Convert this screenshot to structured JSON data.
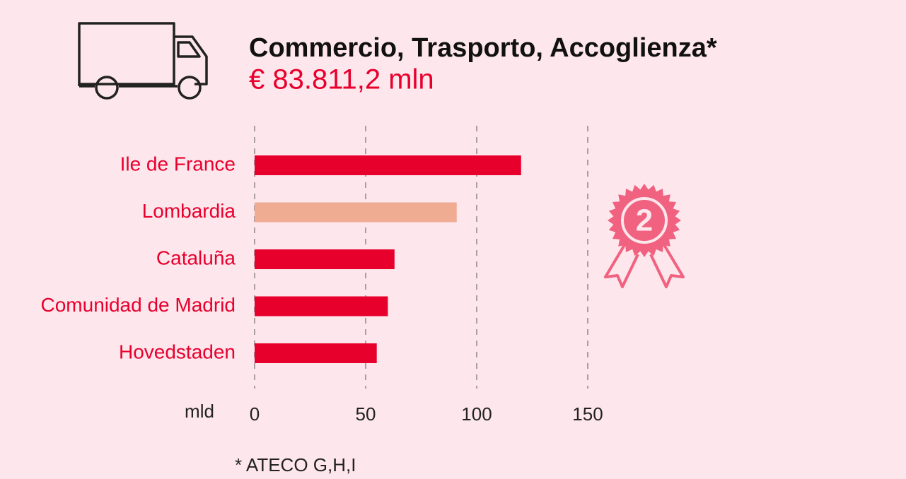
{
  "chart_data": {
    "type": "barh",
    "title": "Commercio, Trasporto, Accoglienza*",
    "subtitle": "€ 83.811,2 mln",
    "categories": [
      "Ile de France",
      "Lombardia",
      "Cataluña",
      "Comunidad de Madrid",
      "Hovedstaden"
    ],
    "values": [
      120,
      91,
      63,
      60,
      55
    ],
    "colors": [
      "#e8002d",
      "#f0ab93",
      "#e8002d",
      "#e8002d",
      "#e8002d"
    ],
    "xlim": [
      0,
      150
    ],
    "xticks": [
      0,
      50,
      100,
      150
    ],
    "x_unit": "mld",
    "grid": true,
    "badge": "2",
    "footnote": "* ATECO G,H,I"
  }
}
